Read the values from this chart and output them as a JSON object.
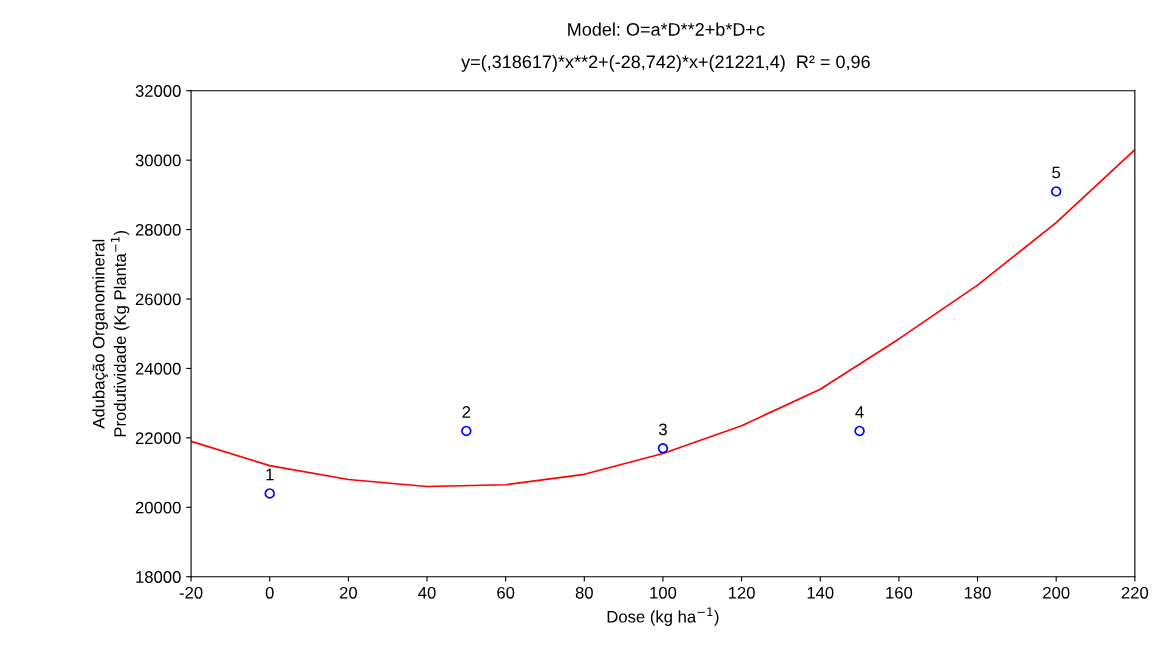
{
  "chart_data": {
    "type": "scatter",
    "title": "Model: O=a*D**2+b*D+c",
    "subtitle": "y=(,318617)*x**2+(-28,742)*x+(21221,4)  R² = 0,96",
    "xlabel": "Dose (kg ha$^{−1}$)",
    "ylabel": "Adubação Organomineral\nProdutividade (Kg Planta$^{−1}$)",
    "x": [
      0,
      50,
      100,
      150,
      200
    ],
    "series": [
      {
        "type": "scatter",
        "color": "#0000ff",
        "marker": "circle",
        "values": [
          20400,
          22200,
          21700,
          22200,
          29100
        ]
      },
      {
        "type": "line",
        "color": "#ff0000",
        "marker": "none",
        "line_style": "solid",
        "x": [
          -20,
          0,
          20,
          40,
          60,
          80,
          100,
          120,
          140,
          160,
          180,
          200,
          220
        ],
        "values": [
          21900,
          21200,
          20800,
          20600,
          20650,
          20950,
          21550,
          22350,
          23400,
          24850,
          26400,
          28200,
          30300
        ]
      }
    ],
    "annotations": [
      {
        "text": "1",
        "x": 0,
        "y": 20400
      },
      {
        "text": "2",
        "x": 50,
        "y": 22200
      },
      {
        "text": "3",
        "x": 100,
        "y": 21700
      },
      {
        "text": "4",
        "x": 150,
        "y": 22200
      },
      {
        "text": "5",
        "x": 200,
        "y": 29100
      }
    ],
    "xlim": [
      -20,
      220
    ],
    "xticks": [
      -20,
      0,
      20,
      40,
      60,
      80,
      100,
      120,
      140,
      160,
      180,
      200,
      220
    ],
    "ylim": [
      18000,
      32000
    ],
    "yticks": [
      18000,
      20000,
      22000,
      24000,
      26000,
      28000,
      30000,
      32000
    ],
    "grid": false,
    "legend": false
  }
}
